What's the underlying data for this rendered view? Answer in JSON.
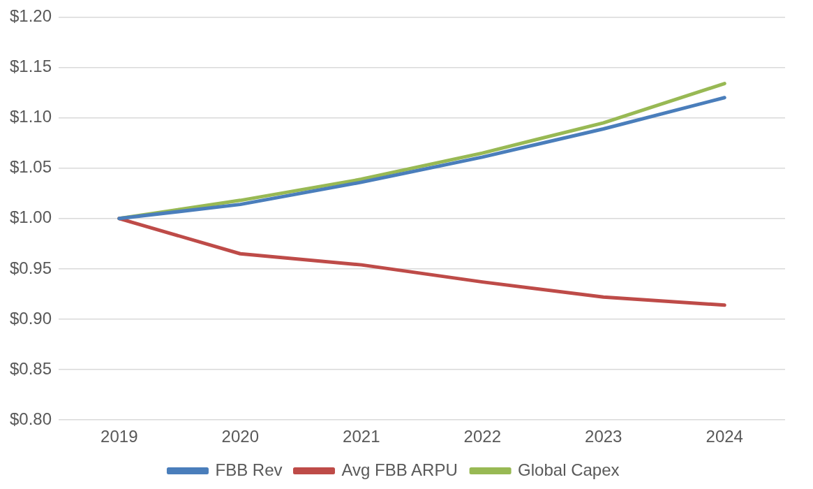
{
  "chart_data": {
    "type": "line",
    "categories": [
      "2019",
      "2020",
      "2021",
      "2022",
      "2023",
      "2024"
    ],
    "series": [
      {
        "name": "FBB Rev",
        "color": "#4a7ebb",
        "values": [
          1.0,
          1.014,
          1.036,
          1.061,
          1.089,
          1.12
        ]
      },
      {
        "name": "Avg FBB ARPU",
        "color": "#be4b48",
        "values": [
          1.0,
          0.965,
          0.954,
          0.937,
          0.922,
          0.914
        ]
      },
      {
        "name": "Global Capex",
        "color": "#98b954",
        "values": [
          1.0,
          1.018,
          1.039,
          1.065,
          1.095,
          1.134
        ]
      }
    ],
    "ylim": [
      0.8,
      1.2
    ],
    "yticks": [
      {
        "value": 0.8,
        "label": "$0.80"
      },
      {
        "value": 0.85,
        "label": "$0.85"
      },
      {
        "value": 0.9,
        "label": "$0.90"
      },
      {
        "value": 0.95,
        "label": "$0.95"
      },
      {
        "value": 1.0,
        "label": "$1.00"
      },
      {
        "value": 1.05,
        "label": "$1.05"
      },
      {
        "value": 1.1,
        "label": "$1.10"
      },
      {
        "value": 1.15,
        "label": "$1.15"
      },
      {
        "value": 1.2,
        "label": "$1.20"
      }
    ],
    "grid": "y",
    "legend": "bottom",
    "marker": "none",
    "line_style": "solid"
  }
}
